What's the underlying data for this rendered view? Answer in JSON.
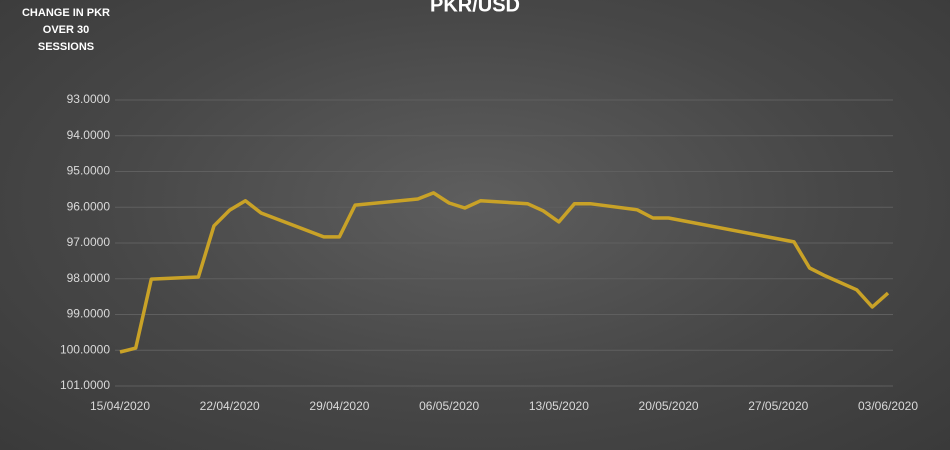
{
  "chart_data": {
    "type": "line",
    "title": "PKR/USD",
    "annotation": "CHANGE IN PKR OVER 30 SESSIONS",
    "x": [
      "15/04/2020",
      "16/04/2020",
      "17/04/2020",
      "20/04/2020",
      "21/04/2020",
      "22/04/2020",
      "23/04/2020",
      "24/04/2020",
      "28/04/2020",
      "29/04/2020",
      "30/04/2020",
      "04/05/2020",
      "05/05/2020",
      "06/05/2020",
      "07/05/2020",
      "08/05/2020",
      "11/05/2020",
      "12/05/2020",
      "13/05/2020",
      "14/05/2020",
      "15/05/2020",
      "18/05/2020",
      "19/05/2020",
      "20/05/2020",
      "28/05/2020",
      "29/05/2020",
      "30/05/2020",
      "01/06/2020",
      "02/06/2020",
      "03/06/2020"
    ],
    "series": [
      {
        "name": "PKR/USD",
        "color": "#c9a227",
        "values": [
          100.05,
          99.94,
          98.01,
          97.95,
          96.52,
          96.08,
          95.82,
          96.16,
          96.83,
          96.83,
          95.94,
          95.77,
          95.6,
          95.88,
          96.02,
          95.82,
          95.9,
          96.1,
          96.41,
          95.9,
          95.9,
          96.07,
          96.3,
          96.3,
          96.97,
          97.7,
          97.92,
          98.31,
          98.79,
          98.4
        ]
      }
    ],
    "xlim": [
      "15/04/2020",
      "03/06/2020"
    ],
    "xticks": [
      "15/04/2020",
      "22/04/2020",
      "29/04/2020",
      "06/05/2020",
      "13/05/2020",
      "20/05/2020",
      "27/05/2020",
      "03/06/2020"
    ],
    "ylim": [
      93,
      101
    ],
    "y_reversed": true,
    "yticks": [
      {
        "value": 93,
        "label": "93.0000"
      },
      {
        "value": 94,
        "label": "94.0000"
      },
      {
        "value": 95,
        "label": "95.0000"
      },
      {
        "value": 96,
        "label": "96.0000"
      },
      {
        "value": 97,
        "label": "97.0000"
      },
      {
        "value": 98,
        "label": "98.0000"
      },
      {
        "value": 99,
        "label": "99.0000"
      },
      {
        "value": 100,
        "label": "100.0000"
      },
      {
        "value": 101,
        "label": "101.0000"
      }
    ],
    "grid": true
  }
}
